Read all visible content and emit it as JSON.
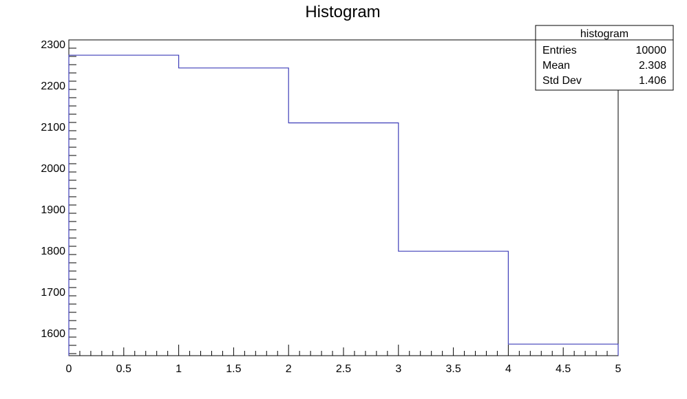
{
  "chart_data": {
    "type": "histogram",
    "title": "Histogram",
    "xlabel": "",
    "ylabel": "",
    "xlim": [
      0,
      5
    ],
    "ylim": [
      1545,
      2310
    ],
    "bin_edges": [
      0,
      1,
      2,
      3,
      4,
      5
    ],
    "values": [
      2273,
      2242,
      2109,
      1798,
      1573
    ],
    "x_ticks": [
      "0",
      "0.5",
      "1",
      "1.5",
      "2",
      "2.5",
      "3",
      "3.5",
      "4",
      "4.5",
      "5"
    ],
    "y_ticks": [
      "1600",
      "1700",
      "1800",
      "1900",
      "2000",
      "2100",
      "2200",
      "2300"
    ],
    "grid": false,
    "line_color": "#3d3db8",
    "legend_position": "top-right",
    "stats_box": {
      "title": "histogram",
      "rows": [
        {
          "label": "Entries",
          "value": "10000"
        },
        {
          "label": "Mean",
          "value": "2.308"
        },
        {
          "label": "Std Dev",
          "value": "1.406"
        }
      ]
    }
  }
}
